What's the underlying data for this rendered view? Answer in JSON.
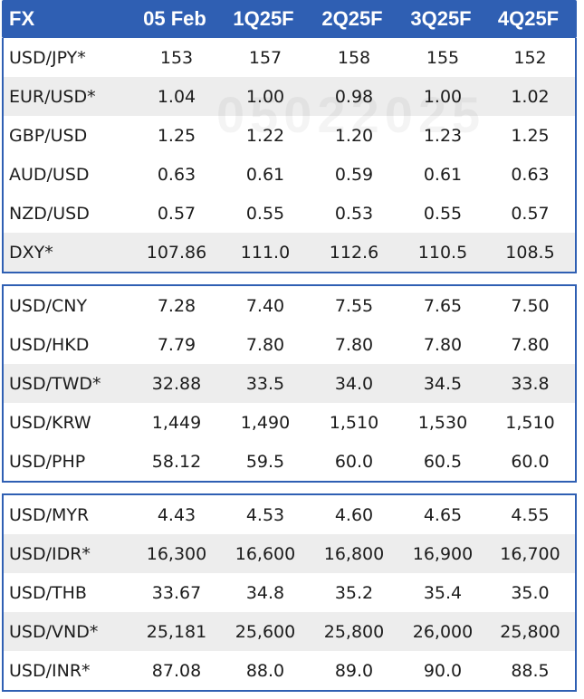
{
  "colors": {
    "accent": "#2f5fb3",
    "shaded_row": "#ededed"
  },
  "header": {
    "label": "FX",
    "columns": [
      "05 Feb",
      "1Q25F",
      "2Q25F",
      "3Q25F",
      "4Q25F"
    ]
  },
  "watermark": "05022025",
  "groups": [
    {
      "rows": [
        {
          "pair": "USD/JPY*",
          "values": [
            "153",
            "157",
            "158",
            "155",
            "152"
          ],
          "shaded": false
        },
        {
          "pair": "EUR/USD*",
          "values": [
            "1.04",
            "1.00",
            "0.98",
            "1.00",
            "1.02"
          ],
          "shaded": true
        },
        {
          "pair": "GBP/USD",
          "values": [
            "1.25",
            "1.22",
            "1.20",
            "1.23",
            "1.25"
          ],
          "shaded": false
        },
        {
          "pair": "AUD/USD",
          "values": [
            "0.63",
            "0.61",
            "0.59",
            "0.61",
            "0.63"
          ],
          "shaded": false
        },
        {
          "pair": "NZD/USD",
          "values": [
            "0.57",
            "0.55",
            "0.53",
            "0.55",
            "0.57"
          ],
          "shaded": false
        },
        {
          "pair": "DXY*",
          "values": [
            "107.86",
            "111.0",
            "112.6",
            "110.5",
            "108.5"
          ],
          "shaded": true
        }
      ]
    },
    {
      "rows": [
        {
          "pair": "USD/CNY",
          "values": [
            "7.28",
            "7.40",
            "7.55",
            "7.65",
            "7.50"
          ],
          "shaded": false
        },
        {
          "pair": "USD/HKD",
          "values": [
            "7.79",
            "7.80",
            "7.80",
            "7.80",
            "7.80"
          ],
          "shaded": false
        },
        {
          "pair": "USD/TWD*",
          "values": [
            "32.88",
            "33.5",
            "34.0",
            "34.5",
            "33.8"
          ],
          "shaded": true
        },
        {
          "pair": "USD/KRW",
          "values": [
            "1,449",
            "1,490",
            "1,510",
            "1,530",
            "1,510"
          ],
          "shaded": false
        },
        {
          "pair": "USD/PHP",
          "values": [
            "58.12",
            "59.5",
            "60.0",
            "60.5",
            "60.0"
          ],
          "shaded": false
        }
      ]
    },
    {
      "rows": [
        {
          "pair": "USD/MYR",
          "values": [
            "4.43",
            "4.53",
            "4.60",
            "4.65",
            "4.55"
          ],
          "shaded": false
        },
        {
          "pair": "USD/IDR*",
          "values": [
            "16,300",
            "16,600",
            "16,800",
            "16,900",
            "16,700"
          ],
          "shaded": true
        },
        {
          "pair": "USD/THB",
          "values": [
            "33.67",
            "34.8",
            "35.2",
            "35.4",
            "35.0"
          ],
          "shaded": false
        },
        {
          "pair": "USD/VND*",
          "values": [
            "25,181",
            "25,600",
            "25,800",
            "26,000",
            "25,800"
          ],
          "shaded": true
        },
        {
          "pair": "USD/INR*",
          "values": [
            "87.08",
            "88.0",
            "89.0",
            "90.0",
            "88.5"
          ],
          "shaded": false
        }
      ]
    }
  ]
}
